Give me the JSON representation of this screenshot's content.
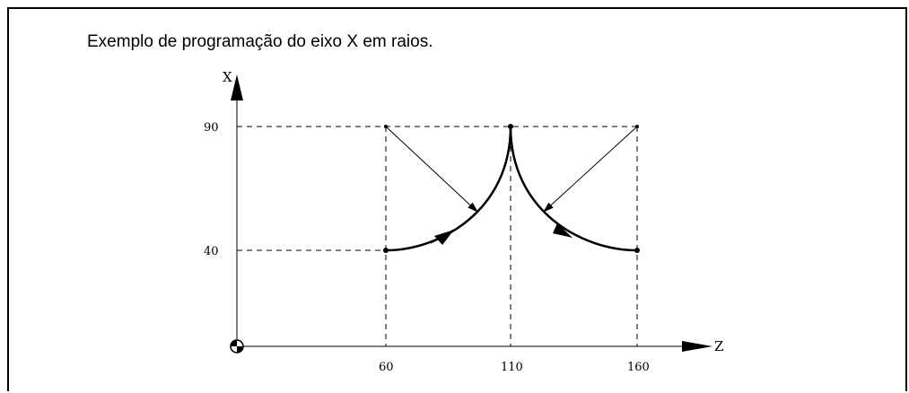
{
  "caption": "Exemplo de programação do eixo X em raios.",
  "axes": {
    "x_axis_label": "X",
    "z_axis_label": "Z"
  },
  "ticks": {
    "x": [
      "40",
      "90"
    ],
    "z": [
      "60",
      "110",
      "160"
    ]
  },
  "origin_symbol": "machine-zero-icon",
  "chart_data": {
    "type": "diagram",
    "axes": {
      "horizontal": "Z",
      "vertical": "X"
    },
    "points": [
      {
        "z": 60,
        "x": 40
      },
      {
        "z": 110,
        "x": 90
      },
      {
        "z": 160,
        "x": 40
      }
    ],
    "arc_centers": [
      {
        "z": 60,
        "x": 90
      },
      {
        "z": 160,
        "x": 90
      }
    ],
    "arcs": [
      {
        "from": {
          "z": 60,
          "x": 40
        },
        "to": {
          "z": 110,
          "x": 90
        },
        "center": {
          "z": 60,
          "x": 90
        }
      },
      {
        "from": {
          "z": 110,
          "x": 90
        },
        "to": {
          "z": 160,
          "x": 40
        },
        "center": {
          "z": 160,
          "x": 90
        }
      }
    ]
  }
}
